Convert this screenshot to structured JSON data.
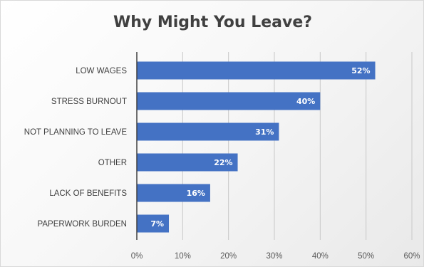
{
  "chart_data": {
    "type": "bar",
    "orientation": "horizontal",
    "title": "Why Might You Leave?",
    "categories": [
      "LOW WAGES",
      "STRESS BURNOUT",
      "NOT PLANNING TO LEAVE",
      "OTHER",
      "LACK OF BENEFITS",
      "PAPERWORK BURDEN"
    ],
    "values": [
      52,
      40,
      31,
      22,
      16,
      7
    ],
    "value_labels": [
      "52%",
      "40%",
      "31%",
      "22%",
      "16%",
      "7%"
    ],
    "x_ticks": [
      "0%",
      "10%",
      "20%",
      "30%",
      "40%",
      "50%",
      "60%"
    ],
    "xlim": [
      0,
      60
    ],
    "xlabel": "",
    "ylabel": "",
    "grid": "vertical",
    "bar_color": "#4472c4"
  }
}
